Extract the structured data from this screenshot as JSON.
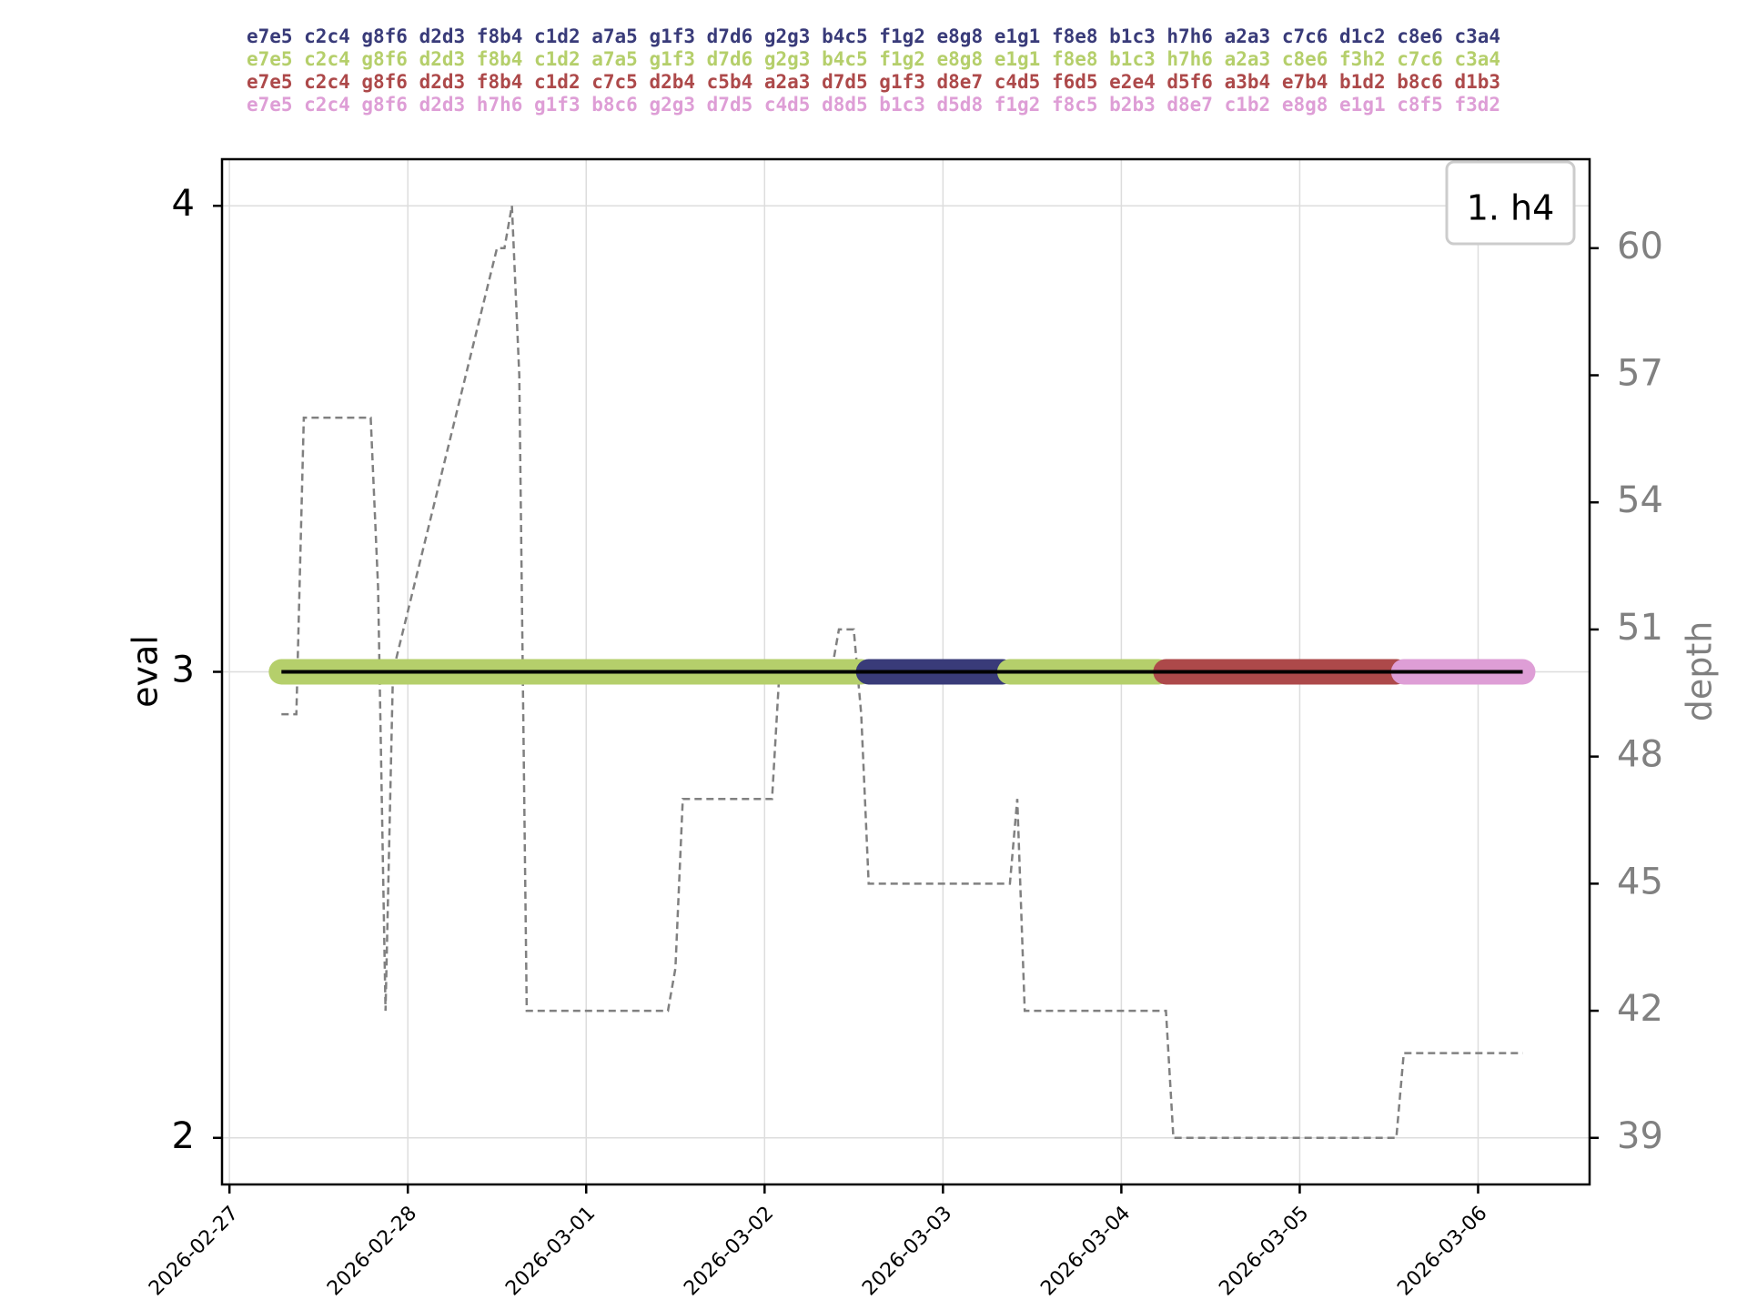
{
  "colors": {
    "background": "#ffffff",
    "grid": "#dddddd",
    "eval_line": "#000000",
    "depth_line": "#808080",
    "depth_axis": "#808080"
  },
  "pv_lines": [
    {
      "color": "#393b79",
      "text": "e7e5 c2c4 g8f6 d2d3 f8b4 c1d2 a7a5 g1f3 d7d6 g2g3 b4c5 f1g2 e8g8 e1g1 f8e8 b1c3 h7h6 a2a3 c7c6 d1c2 c8e6 c3a4"
    },
    {
      "color": "#b5cf6b",
      "text": "e7e5 c2c4 g8f6 d2d3 f8b4 c1d2 a7a5 g1f3 d7d6 g2g3 b4c5 f1g2 e8g8 e1g1 f8e8 b1c3 h7h6 a2a3 c8e6 f3h2 c7c6 c3a4"
    },
    {
      "color": "#ad494a",
      "text": "e7e5 c2c4 g8f6 d2d3 f8b4 c1d2 c7c5 d2b4 c5b4 a2a3 d7d5 g1f3 d8e7 c4d5 f6d5 e2e4 d5f6 a3b4 e7b4 b1d2 b8c6 d1b3"
    },
    {
      "color": "#de9ed6",
      "text": "e7e5 c2c4 g8f6 d2d3 h7h6 g1f3 b8c6 g2g3 d7d5 c4d5 d8d5 b1c3 d5d8 f1g2 f8c5 b2b3 d8e7 c1b2 e8g8 e1g1 c8f5 f3d2"
    }
  ],
  "chart_data": {
    "type": "line",
    "legend": {
      "label": "1. h4",
      "position": "top-right"
    },
    "xlabel": "",
    "ylabel": "eval",
    "y2label": "depth",
    "grid": true,
    "x_range": [
      "2026-02-26T23:00",
      "2026-03-06T15:00"
    ],
    "x_ticks": [
      "2026-02-27",
      "2026-02-28",
      "2026-03-01",
      "2026-03-02",
      "2026-03-03",
      "2026-03-04",
      "2026-03-05",
      "2026-03-06"
    ],
    "ylim": [
      1.9,
      4.1
    ],
    "y_ticks": [
      2,
      3,
      4
    ],
    "y2lim": [
      37.9,
      62.1
    ],
    "y2_ticks": [
      39,
      42,
      45,
      48,
      51,
      54,
      57,
      60
    ],
    "eval_series": {
      "x": [
        "2026-02-27T07:00",
        "2026-03-06T06:00"
      ],
      "values": [
        3,
        3
      ]
    },
    "pv_segments": [
      {
        "pv": 2,
        "start": "2026-02-27T07:00",
        "end": "2026-03-02T13:00",
        "color": "#b5cf6b"
      },
      {
        "pv": 1,
        "start": "2026-03-02T14:00",
        "end": "2026-03-03T08:00",
        "color": "#393b79"
      },
      {
        "pv": 2,
        "start": "2026-03-03T09:00",
        "end": "2026-03-04T05:00",
        "color": "#b5cf6b"
      },
      {
        "pv": 3,
        "start": "2026-03-04T06:00",
        "end": "2026-03-05T13:00",
        "color": "#ad494a"
      },
      {
        "pv": 4,
        "start": "2026-03-05T14:00",
        "end": "2026-03-06T06:00",
        "color": "#de9ed6"
      }
    ],
    "depth_series": {
      "x": [
        "2026-02-27T07:00",
        "2026-02-27T09:00",
        "2026-02-27T10:00",
        "2026-02-27T19:00",
        "2026-02-27T20:00",
        "2026-02-27T21:00",
        "2026-02-27T22:00",
        "2026-02-28T12:00",
        "2026-02-28T13:00",
        "2026-02-28T14:00",
        "2026-02-28T15:00",
        "2026-02-28T16:00",
        "2026-03-01T11:00",
        "2026-03-01T12:00",
        "2026-03-01T13:00",
        "2026-03-02T01:00",
        "2026-03-02T02:00",
        "2026-03-02T09:00",
        "2026-03-02T10:00",
        "2026-03-02T12:00",
        "2026-03-02T13:00",
        "2026-03-02T14:00",
        "2026-03-03T09:00",
        "2026-03-03T10:00",
        "2026-03-03T11:00",
        "2026-03-04T06:00",
        "2026-03-04T07:00",
        "2026-03-05T13:00",
        "2026-03-05T14:00",
        "2026-03-06T06:00"
      ],
      "values": [
        49,
        49,
        56,
        56,
        52,
        42,
        50,
        60,
        60,
        61,
        57,
        42,
        42,
        43,
        47,
        47,
        50,
        50,
        51,
        51,
        49,
        45,
        45,
        47,
        42,
        42,
        39,
        39,
        41,
        41
      ]
    }
  }
}
